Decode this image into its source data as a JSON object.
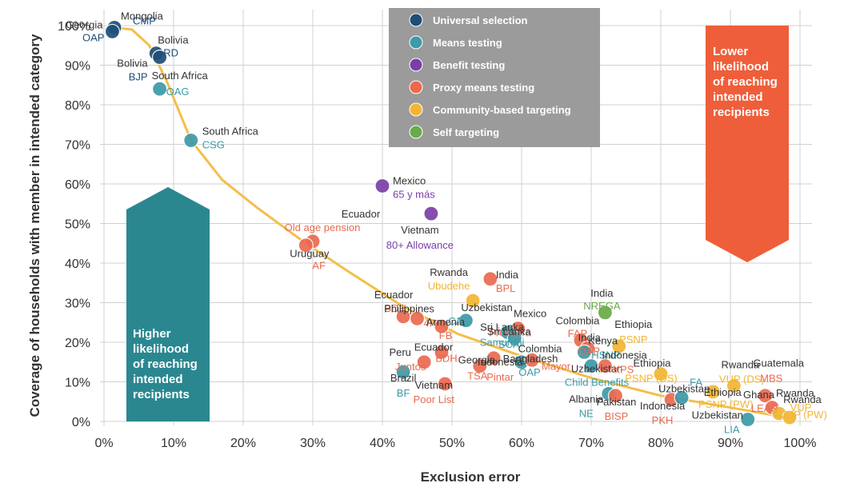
{
  "chart_data": {
    "type": "scatter",
    "xlabel": "Exclusion error",
    "ylabel": "Coverage of households with member in intended category",
    "xlim": [
      0,
      100
    ],
    "ylim": [
      0,
      100
    ],
    "x_ticks": [
      "0%",
      "10%",
      "20%",
      "30%",
      "40%",
      "50%",
      "60%",
      "70%",
      "80%",
      "90%",
      "100%"
    ],
    "y_ticks": [
      "0%",
      "10%",
      "20%",
      "30%",
      "40%",
      "50%",
      "60%",
      "70%",
      "80%",
      "90%",
      "100%"
    ],
    "grid": true,
    "legend_position": "top-center",
    "categories": [
      {
        "key": "universal",
        "name": "Universal selection",
        "color": "#1f4e79"
      },
      {
        "key": "means",
        "name": "Means testing",
        "color": "#3d9aa8"
      },
      {
        "key": "benefit",
        "name": "Benefit testing",
        "color": "#7a3fa8"
      },
      {
        "key": "proxy",
        "name": "Proxy means testing",
        "color": "#eb6a50"
      },
      {
        "key": "community",
        "name": "Community-based targeting",
        "color": "#f2b632"
      },
      {
        "key": "self",
        "name": "Self targeting",
        "color": "#6aaa4a"
      }
    ],
    "trend_color": "#f4be4a",
    "trend_line": [
      [
        1.5,
        99.5
      ],
      [
        4,
        99
      ],
      [
        6.5,
        95
      ],
      [
        9,
        86
      ],
      [
        12.5,
        71
      ],
      [
        17,
        61
      ],
      [
        22,
        54
      ],
      [
        29,
        45
      ],
      [
        35,
        38
      ],
      [
        43,
        29
      ],
      [
        51,
        22
      ],
      [
        60,
        16.5
      ],
      [
        70,
        11
      ],
      [
        80,
        6.5
      ],
      [
        90,
        3.5
      ],
      [
        98,
        1
      ]
    ],
    "points": [
      {
        "country": "Mongolia",
        "program": "CMP",
        "x": 1.5,
        "y": 99.5,
        "cat": "universal"
      },
      {
        "country": "Georgia",
        "program": "OAP",
        "x": 1.2,
        "y": 98.5,
        "cat": "universal"
      },
      {
        "country": "Bolivia",
        "program": "RD",
        "x": 7.5,
        "y": 93,
        "cat": "universal"
      },
      {
        "country": "Bolivia",
        "program": "BJP",
        "x": 8,
        "y": 92,
        "cat": "universal"
      },
      {
        "country": "South Africa",
        "program": "OAG",
        "x": 8,
        "y": 84,
        "cat": "means"
      },
      {
        "country": "South Africa",
        "program": "CSG",
        "x": 12.5,
        "y": 71,
        "cat": "means"
      },
      {
        "country": "Mexico",
        "program": "65 y más",
        "x": 40,
        "y": 59.5,
        "cat": "benefit"
      },
      {
        "country": "Vietnam",
        "program": "80+ Allowance",
        "x": 47,
        "y": 52.5,
        "cat": "benefit"
      },
      {
        "country": "Ecuador",
        "program": "Old age pension",
        "x": 30,
        "y": 45.5,
        "cat": "proxy"
      },
      {
        "country": "Uruguay",
        "program": "AF",
        "x": 29,
        "y": 44.5,
        "cat": "proxy"
      },
      {
        "country": "Rwanda",
        "program": "Ubudehe",
        "x": 53,
        "y": 30.5,
        "cat": "community"
      },
      {
        "country": "India",
        "program": "BPL",
        "x": 55.5,
        "y": 36,
        "cat": "proxy"
      },
      {
        "country": "Ecuador",
        "program": "BDH",
        "x": 43,
        "y": 26.5,
        "cat": "proxy"
      },
      {
        "country": "Philippines",
        "program": "4P",
        "x": 45,
        "y": 26,
        "cat": "proxy"
      },
      {
        "country": "Armenia",
        "program": "FB",
        "x": 48.5,
        "y": 24,
        "cat": "proxy"
      },
      {
        "country": "Uzbekistan",
        "program": "CA",
        "x": 52,
        "y": 25.5,
        "cat": "means"
      },
      {
        "country": "Mexico",
        "program": "Prospera",
        "x": 59.5,
        "y": 23.5,
        "cat": "proxy"
      },
      {
        "country": "Sri Lanka",
        "program": "Samurdhi",
        "x": 58,
        "y": 22.5,
        "cat": "means"
      },
      {
        "country": "Sri Lanka",
        "program": "SCA",
        "x": 59,
        "y": 21,
        "cat": "means"
      },
      {
        "country": "Colombia",
        "program": "FAP",
        "x": 68.5,
        "y": 20.5,
        "cat": "proxy"
      },
      {
        "country": "India",
        "program": "NREGA",
        "x": 72,
        "y": 27.5,
        "cat": "self"
      },
      {
        "country": "India",
        "program": "OAP",
        "x": 69.5,
        "y": 18.5,
        "cat": "proxy"
      },
      {
        "country": "Kenya",
        "program": "HSNP",
        "x": 69,
        "y": 17.5,
        "cat": "means"
      },
      {
        "country": "Ethiopia",
        "program": "PSNP",
        "x": 74,
        "y": 19,
        "cat": "community"
      },
      {
        "country": "Peru",
        "program": "Juntos",
        "x": 46,
        "y": 15,
        "cat": "proxy"
      },
      {
        "country": "Ecuador",
        "program": "BDH",
        "x": 48.5,
        "y": 17.5,
        "cat": "proxy"
      },
      {
        "country": "Georgia",
        "program": "TSA",
        "x": 54,
        "y": 14,
        "cat": "proxy"
      },
      {
        "country": "Bangladesh",
        "program": "OAP",
        "x": 60,
        "y": 15,
        "cat": "means"
      },
      {
        "country": "Colombia",
        "program": "Mayor",
        "x": 61.5,
        "y": 15.5,
        "cat": "proxy"
      },
      {
        "country": "Uzbekistan",
        "program": "Child Benefits",
        "x": 70,
        "y": 14,
        "cat": "means"
      },
      {
        "country": "Indonesia",
        "program": "KPS",
        "x": 72,
        "y": 14,
        "cat": "proxy"
      },
      {
        "country": "Brazil",
        "program": "BF",
        "x": 43,
        "y": 12.5,
        "cat": "means"
      },
      {
        "country": "Vietnam",
        "program": "Poor List",
        "x": 49,
        "y": 9.5,
        "cat": "proxy"
      },
      {
        "country": "Indonesia",
        "program": "Pintar",
        "x": 56,
        "y": 16,
        "cat": "proxy"
      },
      {
        "country": "Albania",
        "program": "NE",
        "x": 72.5,
        "y": 7,
        "cat": "means"
      },
      {
        "country": "Pakistan",
        "program": "BISP",
        "x": 73.5,
        "y": 6.5,
        "cat": "proxy"
      },
      {
        "country": "Ethiopia",
        "program": "PSNP (DS)",
        "x": 80,
        "y": 12,
        "cat": "community"
      },
      {
        "country": "Indonesia",
        "program": "PKH",
        "x": 81.5,
        "y": 5.5,
        "cat": "proxy"
      },
      {
        "country": "Uzbekistan",
        "program": "FA",
        "x": 83,
        "y": 6,
        "cat": "means"
      },
      {
        "country": "Ethiopia",
        "program": "PSNP (PW)",
        "x": 87.5,
        "y": 7.5,
        "cat": "community"
      },
      {
        "country": "Rwanda",
        "program": "VUP (DS)",
        "x": 90.5,
        "y": 9,
        "cat": "community"
      },
      {
        "country": "Uzbekistan",
        "program": "LIA",
        "x": 92.5,
        "y": 0.5,
        "cat": "means"
      },
      {
        "country": "Ghana",
        "program": "LEAP",
        "x": 95,
        "y": 6.5,
        "cat": "proxy"
      },
      {
        "country": "Guatemala",
        "program": "MBS",
        "x": 96,
        "y": 3.5,
        "cat": "proxy"
      },
      {
        "country": "Rwanda",
        "program": "VUP",
        "x": 97,
        "y": 2,
        "cat": "community"
      },
      {
        "country": "Rwanda",
        "program": "VUP (PW)",
        "x": 98.5,
        "y": 1,
        "cat": "community"
      }
    ],
    "annotations": {
      "higher": [
        "Higher",
        "likelihood",
        "of reaching",
        "intended",
        "recipients"
      ],
      "lower": [
        "Lower",
        "likelihood",
        "of reaching",
        "intended",
        "recipients"
      ],
      "higher_color": "#2a8790",
      "lower_color": "#ef5e3a"
    }
  }
}
